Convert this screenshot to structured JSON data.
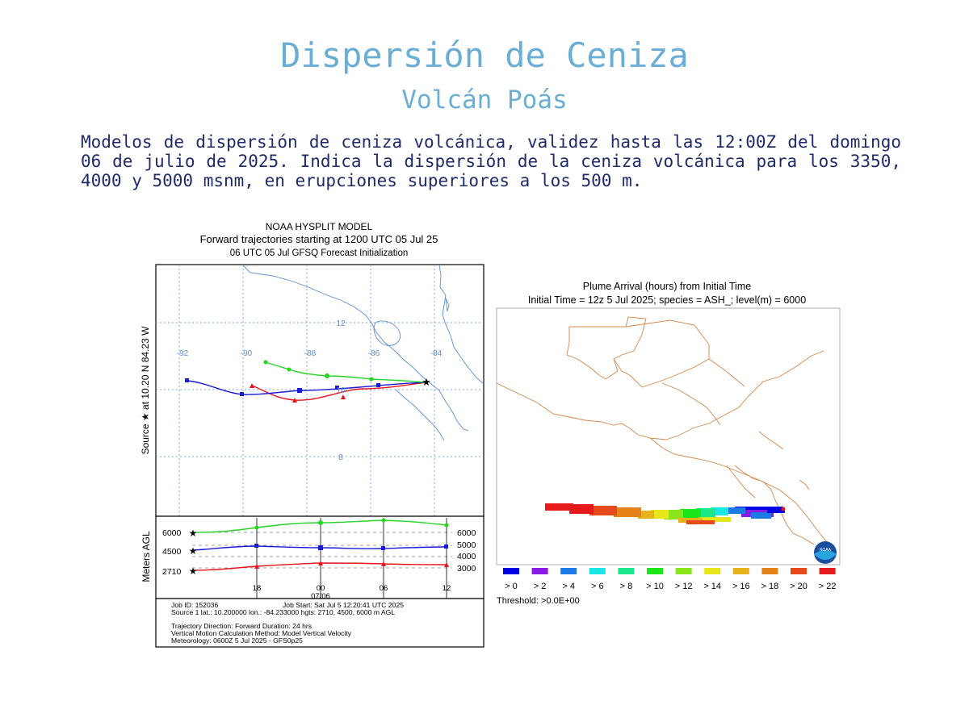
{
  "header": {
    "title": "Dispersión de Ceniza",
    "subtitle": "Volcán Poás"
  },
  "description": "Modelos de dispersión de ceniza volcánica, validez hasta las 12:00Z del domingo 06 de julio de 2025. Indica la dispersión de la ceniza volcánica para los 3350, 4000 y 5000 msnm, en erupciones superiores a los 500 m.",
  "hysplit": {
    "title1": "NOAA HYSPLIT MODEL",
    "title2": "Forward trajectories starting at 1200 UTC 05 Jul 25",
    "title3": "06 UTC 05 Jul    GFSQ  Forecast Initialization",
    "side_label": "Source ★ at    10.20 N   84.23 W",
    "agl_label": "Meters AGL",
    "lon_labels": [
      "-92",
      "-90",
      "-88",
      "-86",
      "-84"
    ],
    "lat_labels": [
      "12",
      "10",
      "8"
    ],
    "left_heights": [
      "6000",
      "4500",
      "2710"
    ],
    "right_heights": [
      "6000",
      "5000",
      "4000",
      "3000"
    ],
    "time_labels": [
      "18",
      "00",
      "06",
      "12"
    ],
    "date_label": "07/06",
    "info": {
      "job_id": "Job ID: 152036",
      "job_start": "Job Start: Sat Jul  5 12:20:41 UTC 2025",
      "source": "Source 1 lat.: 10.200000  lon.: -84.233000  hgts: 2710, 4500, 6000 m AGL",
      "direction": "Trajectory Direction: Forward      Duration: 24 hrs",
      "vertical": "Vertical Motion Calculation Method:      Model Vertical Velocity",
      "met": "Meteorology: 0600Z 5 Jul 2025 - GFS0p25"
    },
    "colors": {
      "low": "#e8141a",
      "mid": "#1a1ad6",
      "high": "#22d622"
    }
  },
  "plume": {
    "title1": "Plume Arrival (hours) from Initial Time",
    "title2": "Initial Time = 12z  5 Jul 2025;  species = ASH_;  level(m) =  6000",
    "legend_labels": [
      "> 0",
      "> 2",
      "> 4",
      "> 6",
      "> 8",
      "> 10",
      "> 12",
      "> 14",
      "> 16",
      "> 18",
      "> 20",
      "> 22"
    ],
    "legend_colors": [
      "#0000e6",
      "#8a1ae6",
      "#1a7ae6",
      "#1ae6e6",
      "#1ae68a",
      "#1ae61a",
      "#8ae61a",
      "#e6e61a",
      "#e6b41a",
      "#e6821a",
      "#e64a1a",
      "#e61a1a"
    ],
    "threshold": "Threshold: >0.0E+00",
    "logo_text": "NOAA"
  }
}
